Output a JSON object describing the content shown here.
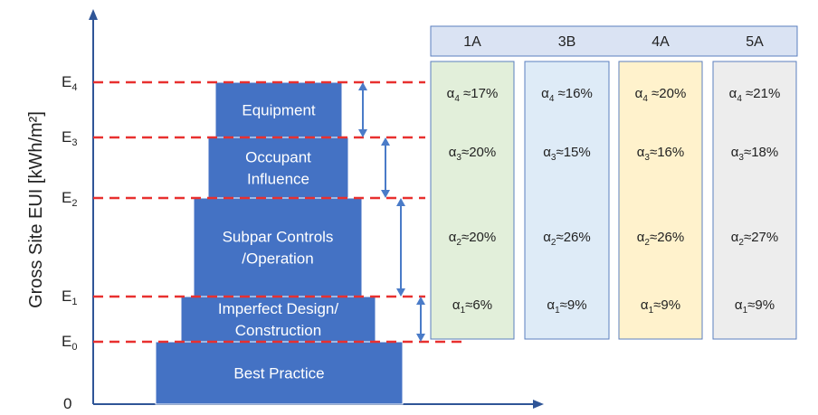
{
  "y_axis": {
    "label": "Gross Site EUI [kWh/m²]",
    "zero_label": "0",
    "levels": [
      {
        "base": "E",
        "sub": "0"
      },
      {
        "base": "E",
        "sub": "1"
      },
      {
        "base": "E",
        "sub": "2"
      },
      {
        "base": "E",
        "sub": "3"
      },
      {
        "base": "E",
        "sub": "4"
      }
    ]
  },
  "tiers": [
    {
      "lines": [
        "Best Practice"
      ]
    },
    {
      "lines": [
        "Imperfect Design/",
        "Construction"
      ]
    },
    {
      "lines": [
        "Subpar Controls",
        "/Operation"
      ]
    },
    {
      "lines": [
        "Occupant",
        "Influence"
      ]
    },
    {
      "lines": [
        "Equipment"
      ]
    }
  ],
  "climate_zones": [
    "1A",
    "3B",
    "4A",
    "5A"
  ],
  "zone_colors": [
    "#e2efda",
    "#deebf7",
    "#fff2cc",
    "#ededed"
  ],
  "alpha_symbol": "α",
  "alpha_rows": [
    {
      "sub": "4",
      "sep": " ≈",
      "values": [
        "17%",
        "16%",
        "20%",
        "21%"
      ]
    },
    {
      "sub": "3",
      "sep": "≈",
      "values": [
        "20%",
        "15%",
        "16%",
        "18%"
      ]
    },
    {
      "sub": "2",
      "sep": "≈",
      "values": [
        "20%",
        "26%",
        "26%",
        "27%"
      ]
    },
    {
      "sub": "1",
      "sep": "≈",
      "values": [
        "6%",
        "9%",
        "9%",
        "9%"
      ]
    }
  ],
  "colors": {
    "tier_fill": "#4472c4",
    "axis": "#2f5597",
    "dashed": "#e8302f",
    "header_fill": "#dae3f3",
    "box_border": "#5b7fbf"
  }
}
